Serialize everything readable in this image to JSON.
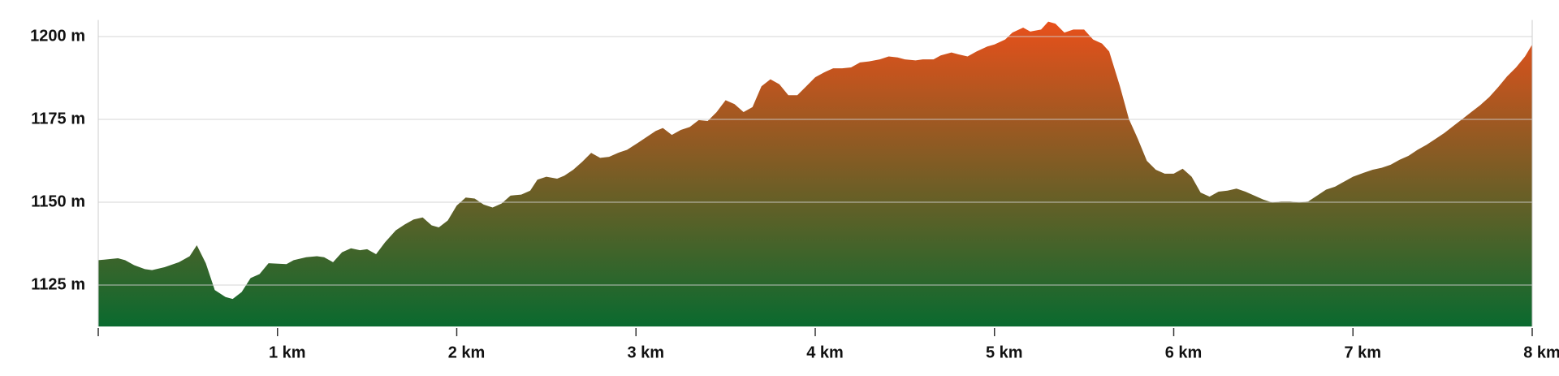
{
  "chart_data": {
    "type": "area",
    "x": [
      0,
      0.06,
      0.11,
      0.15,
      0.2,
      0.26,
      0.3,
      0.37,
      0.45,
      0.51,
      0.55,
      0.6,
      0.65,
      0.71,
      0.75,
      0.8,
      0.85,
      0.9,
      0.95,
      1.05,
      1.09,
      1.16,
      1.22,
      1.26,
      1.31,
      1.36,
      1.41,
      1.46,
      1.5,
      1.55,
      1.6,
      1.66,
      1.71,
      1.76,
      1.81,
      1.86,
      1.9,
      1.95,
      2.0,
      2.05,
      2.1,
      2.15,
      2.2,
      2.25,
      2.3,
      2.36,
      2.41,
      2.45,
      2.5,
      2.56,
      2.6,
      2.65,
      2.7,
      2.75,
      2.8,
      2.85,
      2.9,
      2.95,
      3.01,
      3.06,
      3.11,
      3.15,
      3.2,
      3.25,
      3.3,
      3.35,
      3.4,
      3.45,
      3.5,
      3.55,
      3.6,
      3.65,
      3.7,
      3.75,
      3.8,
      3.85,
      3.9,
      3.95,
      4.0,
      4.05,
      4.1,
      4.15,
      4.2,
      4.25,
      4.3,
      4.36,
      4.41,
      4.46,
      4.5,
      4.56,
      4.6,
      4.66,
      4.7,
      4.76,
      4.8,
      4.85,
      4.9,
      4.96,
      5.0,
      5.06,
      5.1,
      5.16,
      5.2,
      5.26,
      5.3,
      5.34,
      5.39,
      5.44,
      5.5,
      5.55,
      5.6,
      5.64,
      5.7,
      5.75,
      5.8,
      5.85,
      5.9,
      5.95,
      6.0,
      6.05,
      6.1,
      6.15,
      6.2,
      6.25,
      6.3,
      6.35,
      6.4,
      6.45,
      6.5,
      6.55,
      6.6,
      6.65,
      6.7,
      6.75,
      6.8,
      6.85,
      6.9,
      6.95,
      7.0,
      7.06,
      7.11,
      7.16,
      7.21,
      7.26,
      7.31,
      7.36,
      7.41,
      7.46,
      7.51,
      7.56,
      7.61,
      7.66,
      7.71,
      7.76,
      7.81,
      7.86,
      7.91,
      7.96,
      8.0
    ],
    "values": [
      1132.5,
      1132.8,
      1133.1,
      1132.5,
      1131,
      1129.8,
      1129.5,
      1130.4,
      1131.9,
      1133.7,
      1137,
      1131.6,
      1123.5,
      1121.4,
      1120.8,
      1122.9,
      1127.1,
      1128.3,
      1131.6,
      1131.3,
      1132.5,
      1133.4,
      1133.7,
      1133.4,
      1131.9,
      1134.9,
      1136.1,
      1135.5,
      1135.8,
      1134.3,
      1137.9,
      1141.5,
      1143.3,
      1144.8,
      1145.4,
      1143,
      1142.4,
      1144.5,
      1149,
      1151.4,
      1151.1,
      1149.3,
      1148.4,
      1149.6,
      1152,
      1152.3,
      1153.5,
      1156.8,
      1157.7,
      1157.1,
      1158,
      1159.8,
      1162.2,
      1164.9,
      1163.4,
      1163.7,
      1164.9,
      1165.8,
      1167.9,
      1169.7,
      1171.5,
      1172.4,
      1170.3,
      1171.8,
      1172.7,
      1174.8,
      1174.5,
      1177.2,
      1180.8,
      1179.6,
      1177.2,
      1178.7,
      1185,
      1187.1,
      1185.6,
      1182.3,
      1182.3,
      1185,
      1187.7,
      1189.2,
      1190.4,
      1190.4,
      1190.7,
      1192.2,
      1192.5,
      1193.1,
      1194,
      1193.7,
      1193.1,
      1192.8,
      1193.1,
      1193.1,
      1194.3,
      1195.2,
      1194.6,
      1194,
      1195.5,
      1197,
      1197.6,
      1199.1,
      1201.2,
      1202.7,
      1201.5,
      1202.1,
      1204.5,
      1203.9,
      1201.2,
      1202.1,
      1202.1,
      1199.1,
      1197.9,
      1195.5,
      1185,
      1175.1,
      1169.1,
      1162.5,
      1159.8,
      1158.6,
      1158.6,
      1160.1,
      1157.7,
      1152.9,
      1151.7,
      1153.2,
      1153.5,
      1154.1,
      1153.2,
      1152,
      1150.8,
      1149.9,
      1150.2,
      1150.2,
      1149.9,
      1150.2,
      1152,
      1153.8,
      1154.7,
      1156.2,
      1157.7,
      1158.9,
      1159.8,
      1160.4,
      1161.3,
      1162.8,
      1164,
      1165.8,
      1167.3,
      1169.1,
      1170.9,
      1173,
      1175.1,
      1177.2,
      1179.3,
      1181.7,
      1184.7,
      1188,
      1190.7,
      1194,
      1197.6
    ],
    "xlim": [
      0,
      8
    ],
    "xticks": [
      {
        "value": 1,
        "label": "1 km"
      },
      {
        "value": 2,
        "label": "2 km"
      },
      {
        "value": 3,
        "label": "3 km"
      },
      {
        "value": 4,
        "label": "4 km"
      },
      {
        "value": 5,
        "label": "5 km"
      },
      {
        "value": 6,
        "label": "6 km"
      },
      {
        "value": 7,
        "label": "7 km"
      },
      {
        "value": 8,
        "label": "8 km"
      }
    ],
    "ylim": [
      1112.5,
      1205
    ],
    "yticks": [
      {
        "value": 1125,
        "label": "1125 m"
      },
      {
        "value": 1150,
        "label": "1150 m"
      },
      {
        "value": 1175,
        "label": "1175 m"
      },
      {
        "value": 1200,
        "label": "1200 m"
      }
    ],
    "grid": true,
    "gradient": [
      "#e8501b",
      "#0a6a2f"
    ]
  }
}
